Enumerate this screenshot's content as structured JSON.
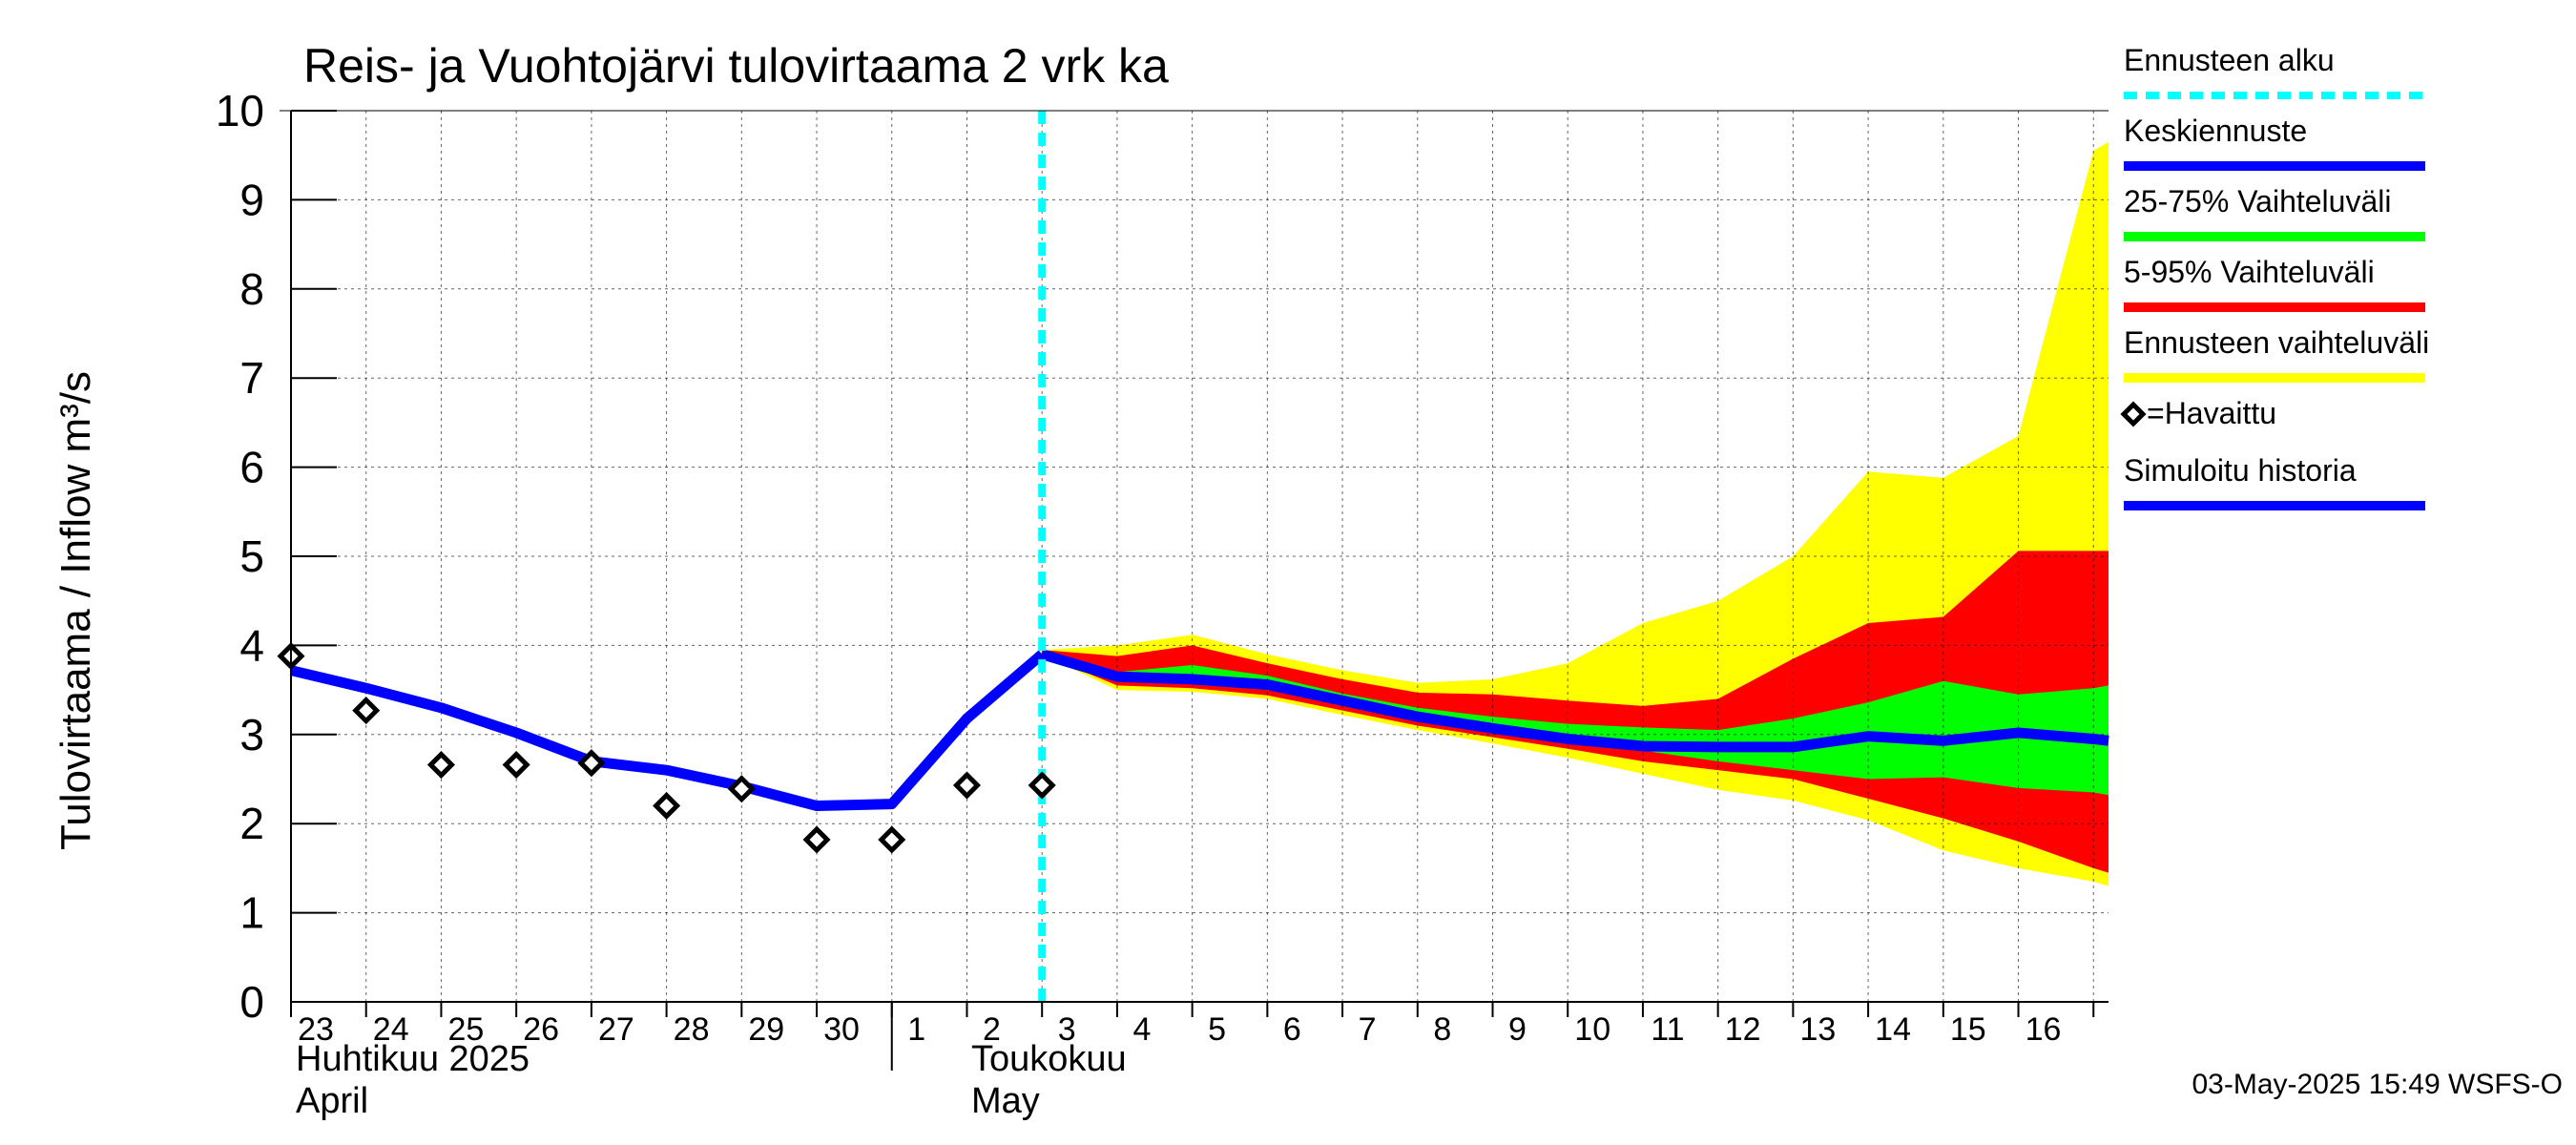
{
  "chart_data": {
    "type": "line",
    "title": "Reis- ja Vuohtojärvi tulovirtaama  2 vrk ka",
    "ylabel": "Tulovirtaama / Inflow    m³/s",
    "ylim": [
      0,
      10
    ],
    "yticks": [
      "0",
      "1",
      "2",
      "3",
      "4",
      "5",
      "6",
      "7",
      "8",
      "9",
      "10"
    ],
    "x_day_labels": [
      "23",
      "24",
      "25",
      "26",
      "27",
      "28",
      "29",
      "30",
      "1",
      "2",
      "3",
      "4",
      "5",
      "6",
      "7",
      "8",
      "9",
      "10",
      "11",
      "12",
      "13",
      "14",
      "15",
      "16"
    ],
    "x_range": [
      -10,
      14.2
    ],
    "month_labels": [
      {
        "fi": "Huhtikuu  2025",
        "en": "April"
      },
      {
        "fi": "Toukokuu",
        "en": "May"
      }
    ],
    "forecast_start": 0,
    "legend": [
      {
        "label": "Ennusteen alku",
        "color": "#00ffff"
      },
      {
        "label": "Keskiennuste",
        "color": "#0000ff"
      },
      {
        "label": "25-75% Vaihteluväli",
        "color": "#00ff00"
      },
      {
        "label": "5-95% Vaihteluväli",
        "color": "#ff0000"
      },
      {
        "label": "Ennusteen vaihteluväli",
        "color": "#ffff00"
      },
      {
        "label": "=Havaittu",
        "color": "#000000"
      },
      {
        "label": "Simuloitu historia",
        "color": "#0000ff"
      }
    ],
    "simulated_history": {
      "x": [
        -10,
        -9,
        -8,
        -7,
        -6,
        -5,
        -4,
        -3,
        -2,
        -1,
        0
      ],
      "y": [
        3.72,
        3.52,
        3.3,
        3.02,
        2.7,
        2.6,
        2.42,
        2.2,
        2.22,
        3.18,
        3.9
      ]
    },
    "observed": {
      "x": [
        -10,
        -9,
        -8,
        -7,
        -6,
        -5,
        -4,
        -3,
        -2,
        -1,
        0
      ],
      "y": [
        3.88,
        3.27,
        2.66,
        2.66,
        2.68,
        2.2,
        2.39,
        1.82,
        1.82,
        2.43,
        2.43
      ]
    },
    "forecast_x": [
      0,
      1,
      2,
      3,
      4,
      5,
      6,
      7,
      8,
      9,
      10,
      11,
      12,
      13,
      14,
      14.2
    ],
    "median": [
      3.9,
      3.65,
      3.62,
      3.56,
      3.38,
      3.2,
      3.07,
      2.95,
      2.87,
      2.86,
      2.86,
      2.98,
      2.93,
      3.02,
      2.95,
      2.93
    ],
    "band_min_max": {
      "low": [
        3.9,
        3.5,
        3.48,
        3.4,
        3.22,
        3.05,
        2.9,
        2.74,
        2.56,
        2.38,
        2.26,
        2.04,
        1.7,
        1.5,
        1.35,
        1.3
      ],
      "high": [
        3.95,
        4.0,
        4.12,
        3.9,
        3.72,
        3.58,
        3.62,
        3.8,
        4.25,
        4.5,
        5.0,
        5.95,
        5.88,
        6.35,
        9.55,
        9.65
      ]
    },
    "band_5_95": {
      "low": [
        3.9,
        3.55,
        3.52,
        3.44,
        3.27,
        3.1,
        2.97,
        2.84,
        2.7,
        2.6,
        2.5,
        2.28,
        2.06,
        1.8,
        1.5,
        1.45
      ],
      "high": [
        3.95,
        3.88,
        4.0,
        3.8,
        3.62,
        3.47,
        3.45,
        3.38,
        3.32,
        3.4,
        3.85,
        4.25,
        4.32,
        5.06,
        5.06,
        5.06
      ]
    },
    "band_25_75": {
      "low": [
        3.9,
        3.62,
        3.6,
        3.5,
        3.34,
        3.17,
        3.04,
        2.92,
        2.82,
        2.7,
        2.6,
        2.5,
        2.52,
        2.4,
        2.35,
        2.32
      ],
      "high": [
        3.9,
        3.7,
        3.78,
        3.66,
        3.46,
        3.3,
        3.2,
        3.12,
        3.08,
        3.05,
        3.18,
        3.36,
        3.6,
        3.45,
        3.52,
        3.55
      ]
    }
  },
  "footer": {
    "timestamp": "03-May-2025 15:49 WSFS-O"
  }
}
